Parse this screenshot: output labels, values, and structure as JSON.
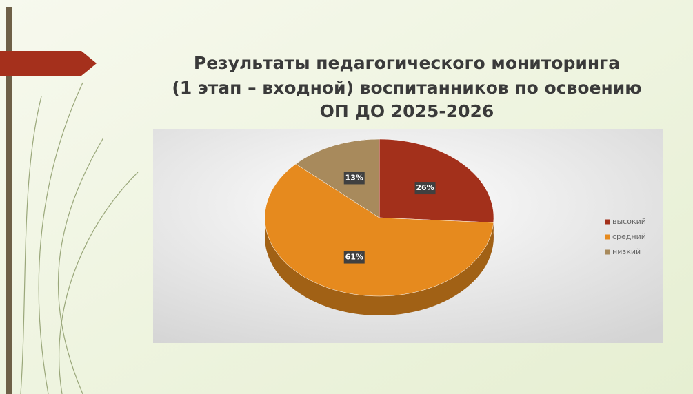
{
  "chart_data": {
    "type": "pie",
    "title": [
      "Результаты педагогического мониторинга",
      "(1 этап – входной) воспитанников по освоению",
      "ОП ДО 2025-2026"
    ],
    "categories": [
      "высокий",
      "средний",
      "низкий"
    ],
    "values": [
      26,
      61,
      13
    ],
    "value_labels": [
      "26%",
      "61%",
      "13%"
    ],
    "colors": [
      "#a3301b",
      "#e68a1e",
      "#a88a5c"
    ],
    "legend": "right"
  }
}
